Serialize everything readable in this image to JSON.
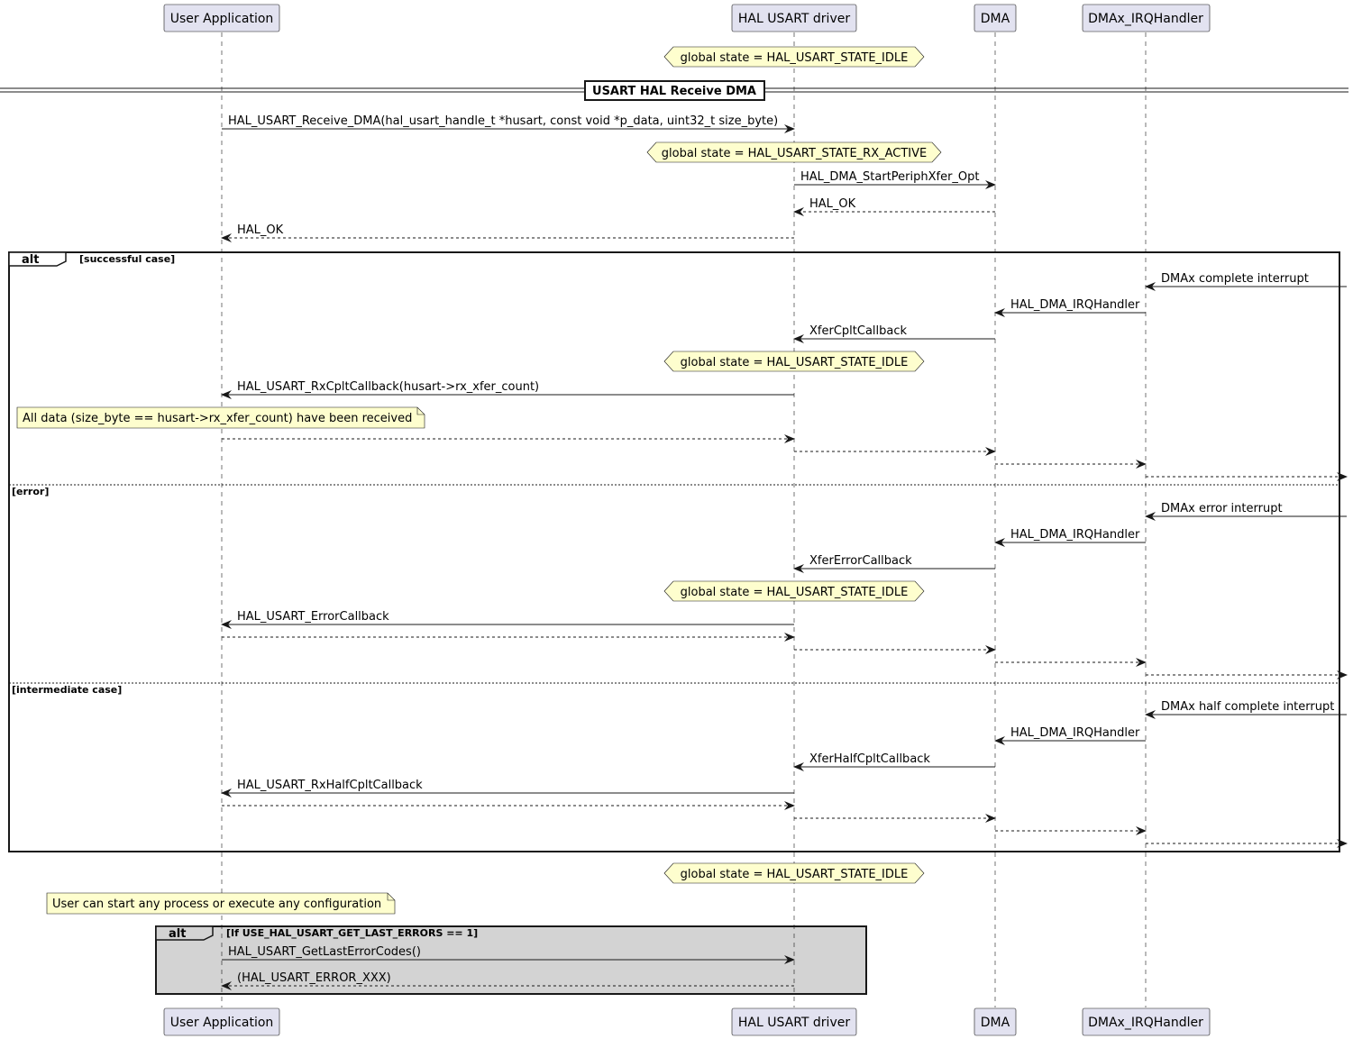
{
  "diagram": {
    "participants": [
      {
        "id": "app",
        "label": "User Application"
      },
      {
        "id": "hal",
        "label": "HAL USART driver"
      },
      {
        "id": "dma",
        "label": "DMA"
      },
      {
        "id": "irq",
        "label": "DMAx_IRQHandler"
      }
    ],
    "divider": {
      "label": "USART HAL Receive DMA"
    },
    "messages": [
      {
        "from": "app",
        "to": "hal",
        "label": "HAL_USART_Receive_DMA(hal_usart_handle_t *husart, const void *p_data, uint32_t size_byte)",
        "style": "solid"
      },
      {
        "from": "hal",
        "to": "dma",
        "label": "HAL_DMA_StartPeriphXfer_Opt",
        "style": "solid"
      },
      {
        "from": "dma",
        "to": "hal",
        "label": "HAL_OK",
        "style": "dashed"
      },
      {
        "from": "hal",
        "to": "app",
        "label": "HAL_OK",
        "style": "dashed"
      },
      {
        "from": "edge",
        "to": "irq",
        "label": "DMAx complete interrupt",
        "style": "solid"
      },
      {
        "from": "irq",
        "to": "dma",
        "label": "HAL_DMA_IRQHandler",
        "style": "solid"
      },
      {
        "from": "dma",
        "to": "hal",
        "label": "XferCpltCallback",
        "style": "solid"
      },
      {
        "from": "hal",
        "to": "app",
        "label": "HAL_USART_RxCpltCallback(husart->rx_xfer_count)",
        "style": "solid"
      },
      {
        "from": "app",
        "to": "hal",
        "label": "",
        "style": "dashed"
      },
      {
        "from": "hal",
        "to": "dma",
        "label": "",
        "style": "dashed"
      },
      {
        "from": "dma",
        "to": "irq",
        "label": "",
        "style": "dashed"
      },
      {
        "from": "irq",
        "to": "edge",
        "label": "",
        "style": "dashed"
      },
      {
        "from": "edge",
        "to": "irq",
        "label": "DMAx error interrupt",
        "style": "solid"
      },
      {
        "from": "irq",
        "to": "dma",
        "label": "HAL_DMA_IRQHandler",
        "style": "solid"
      },
      {
        "from": "dma",
        "to": "hal",
        "label": "XferErrorCallback",
        "style": "solid"
      },
      {
        "from": "hal",
        "to": "app",
        "label": "HAL_USART_ErrorCallback",
        "style": "solid"
      },
      {
        "from": "app",
        "to": "hal",
        "label": "",
        "style": "dashed"
      },
      {
        "from": "hal",
        "to": "dma",
        "label": "",
        "style": "dashed"
      },
      {
        "from": "dma",
        "to": "irq",
        "label": "",
        "style": "dashed"
      },
      {
        "from": "irq",
        "to": "edge",
        "label": "",
        "style": "dashed"
      },
      {
        "from": "edge",
        "to": "irq",
        "label": "DMAx half complete interrupt",
        "style": "solid"
      },
      {
        "from": "irq",
        "to": "dma",
        "label": "HAL_DMA_IRQHandler",
        "style": "solid"
      },
      {
        "from": "dma",
        "to": "hal",
        "label": "XferHalfCpltCallback",
        "style": "solid"
      },
      {
        "from": "hal",
        "to": "app",
        "label": "HAL_USART_RxHalfCpltCallback",
        "style": "solid"
      },
      {
        "from": "app",
        "to": "hal",
        "label": "",
        "style": "dashed"
      },
      {
        "from": "hal",
        "to": "dma",
        "label": "",
        "style": "dashed"
      },
      {
        "from": "dma",
        "to": "irq",
        "label": "",
        "style": "dashed"
      },
      {
        "from": "irq",
        "to": "edge",
        "label": "",
        "style": "dashed"
      },
      {
        "from": "app",
        "to": "hal",
        "label": "HAL_USART_GetLastErrorCodes()",
        "style": "solid"
      },
      {
        "from": "hal",
        "to": "app",
        "label": "(HAL_USART_ERROR_XXX)",
        "style": "dashed"
      }
    ],
    "states": [
      "global state = HAL_USART_STATE_IDLE",
      "global state = HAL_USART_STATE_RX_ACTIVE",
      "global state = HAL_USART_STATE_IDLE",
      "global state = HAL_USART_STATE_IDLE",
      "global state = HAL_USART_STATE_IDLE"
    ],
    "notes": [
      "All data (size_byte == husart->rx_xfer_count) have been received",
      "User can start any process or execute any configuration"
    ],
    "groups": [
      {
        "kind": "alt",
        "sections": [
          "[successful case]",
          "[error]",
          "[intermediate case]"
        ],
        "fill": "#ffffff"
      },
      {
        "kind": "alt",
        "sections": [
          "[If USE_HAL_USART_GET_LAST_ERRORS == 1]"
        ],
        "fill": "#d3d3d3"
      }
    ],
    "colors": {
      "participant_fill": "#e2e2f0",
      "participant_border": "#181818",
      "note_fill": "#fefece",
      "state_fill": "#fefece",
      "lifeline": "#181818",
      "arrow": "#181818"
    }
  }
}
